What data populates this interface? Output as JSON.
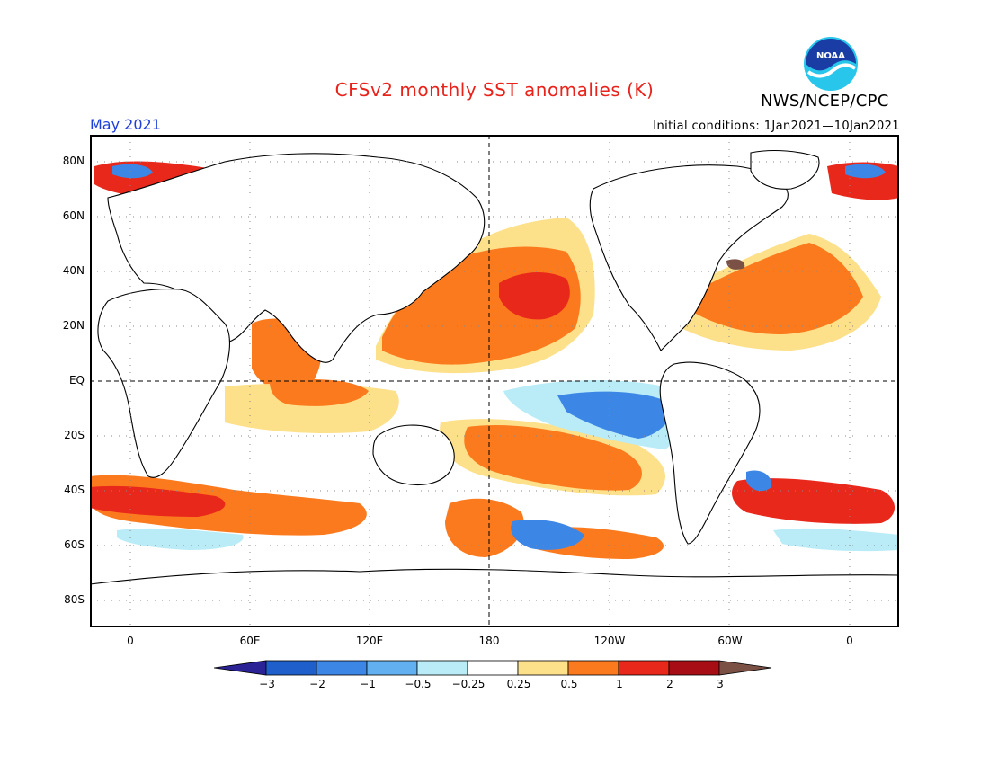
{
  "title": "CFSv2 monthly SST anomalies (K)",
  "agency": "NWS/NCEP/CPC",
  "logo_text": "NOAA",
  "forecast_month": "May 2021",
  "initial_conditions": "Initial conditions:  1Jan2021—10Jan2021",
  "lat_labels": [
    "80N",
    "60N",
    "40N",
    "20N",
    "EQ",
    "20S",
    "40S",
    "60S",
    "80S"
  ],
  "lon_labels": [
    "0",
    "60E",
    "120E",
    "180",
    "120W",
    "60W",
    "0"
  ],
  "colorbar": {
    "labels": [
      "−3",
      "−2",
      "−1",
      "−0.5",
      "−0.25",
      "0.25",
      "0.5",
      "1",
      "2",
      "3"
    ],
    "colors": [
      "#2b2296",
      "#1f5fcb",
      "#3c86e6",
      "#62b0f0",
      "#b9ecf7",
      "#ffffff",
      "#fde08a",
      "#fb7a1e",
      "#e9281c",
      "#a60d14",
      "#7a5144"
    ]
  }
}
